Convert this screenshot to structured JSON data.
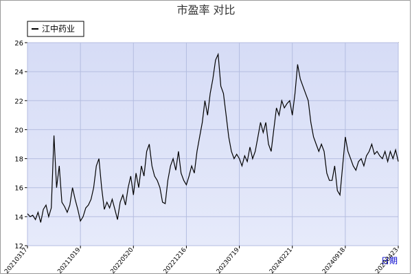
{
  "chart_data": {
    "type": "line",
    "title": "市盈率  对比",
    "x_label": "日期",
    "categories": [
      "20210317",
      null,
      null,
      null,
      null,
      null,
      null,
      null,
      null,
      null,
      null,
      null,
      null,
      null,
      null,
      null,
      null,
      null,
      null,
      null,
      "20211019",
      null,
      null,
      null,
      null,
      null,
      null,
      null,
      null,
      null,
      null,
      null,
      null,
      null,
      null,
      null,
      null,
      null,
      null,
      null,
      "20220520",
      null,
      null,
      null,
      null,
      null,
      null,
      null,
      null,
      null,
      null,
      null,
      null,
      null,
      null,
      null,
      null,
      null,
      null,
      null,
      "20221216",
      null,
      null,
      null,
      null,
      null,
      null,
      null,
      null,
      null,
      null,
      null,
      null,
      null,
      null,
      null,
      null,
      null,
      null,
      null,
      "20230719",
      null,
      null,
      null,
      null,
      null,
      null,
      null,
      null,
      null,
      null,
      null,
      null,
      null,
      null,
      null,
      null,
      null,
      null,
      null,
      "20240221",
      null,
      null,
      null,
      null,
      null,
      null,
      null,
      null,
      null,
      null,
      null,
      null,
      null,
      null,
      null,
      null,
      null,
      null,
      null,
      "20240918",
      null,
      null,
      null,
      null,
      null,
      null,
      null,
      null,
      null,
      null,
      null,
      null,
      null,
      null,
      null,
      null,
      null,
      null,
      null,
      "20250423"
    ],
    "series": [
      {
        "name": "江中药业",
        "color": "#000000",
        "values": [
          14.2,
          14.0,
          14.1,
          13.8,
          14.3,
          13.6,
          14.5,
          14.8,
          14.0,
          14.6,
          19.6,
          16.0,
          17.5,
          15.0,
          14.7,
          14.3,
          14.8,
          16.0,
          15.2,
          14.5,
          13.7,
          14.0,
          14.6,
          14.8,
          15.2,
          16.0,
          17.5,
          18.0,
          16.0,
          14.5,
          15.0,
          14.6,
          15.2,
          14.5,
          13.8,
          15.0,
          15.5,
          14.8,
          16.0,
          16.8,
          15.5,
          17.0,
          16.0,
          17.5,
          16.8,
          18.5,
          19.0,
          17.5,
          16.8,
          16.5,
          16.0,
          15.0,
          14.9,
          16.5,
          17.5,
          18.0,
          17.2,
          18.5,
          17.0,
          16.5,
          16.2,
          16.8,
          17.5,
          17.0,
          18.5,
          19.5,
          20.5,
          22.0,
          21.0,
          22.5,
          23.5,
          24.8,
          25.2,
          23.0,
          22.5,
          21.0,
          19.5,
          18.5,
          18.0,
          18.3,
          18.0,
          17.5,
          18.2,
          17.8,
          18.8,
          18.0,
          18.5,
          19.5,
          20.5,
          19.8,
          20.5,
          19.0,
          18.5,
          20.0,
          21.5,
          21.0,
          22.0,
          21.5,
          21.8,
          22.0,
          21.0,
          22.5,
          24.5,
          23.5,
          23.0,
          22.5,
          22.0,
          20.5,
          19.5,
          19.0,
          18.5,
          19.0,
          18.5,
          17.0,
          16.5,
          16.5,
          17.5,
          15.8,
          15.5,
          17.5,
          19.5,
          18.5,
          18.0,
          17.5,
          17.2,
          17.8,
          18.0,
          17.5,
          18.2,
          18.5,
          19.0,
          18.3,
          18.5,
          18.2,
          18.0,
          18.5,
          17.8,
          18.5,
          18.0,
          18.6,
          17.8
        ]
      }
    ],
    "ylim": [
      12,
      26
    ],
    "yticks": [
      12,
      14,
      16,
      18,
      20,
      22,
      24,
      26
    ],
    "grid": true,
    "legend": "top-left"
  }
}
